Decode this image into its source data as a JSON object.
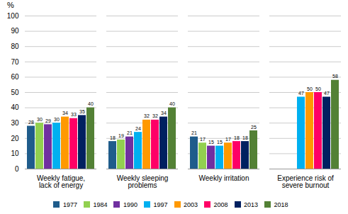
{
  "chart_data": {
    "type": "bar",
    "categories": [
      "Weekly fatigue,\nlack of energy",
      "Weekly sleeping\nproblems",
      "Weekly irritation",
      "Experience risk of\nsevere burnout"
    ],
    "series": [
      {
        "name": "1977",
        "color": "#1f5c8b",
        "values": [
          28,
          18,
          21,
          null
        ]
      },
      {
        "name": "1984",
        "color": "#92d050",
        "values": [
          30,
          19,
          17,
          null
        ]
      },
      {
        "name": "1990",
        "color": "#7030a0",
        "values": [
          29,
          21,
          15,
          null
        ]
      },
      {
        "name": "1997",
        "color": "#00b0f0",
        "values": [
          30,
          24,
          15,
          47
        ]
      },
      {
        "name": "2003",
        "color": "#ff9900",
        "values": [
          34,
          32,
          17,
          50
        ]
      },
      {
        "name": "2008",
        "color": "#ff0066",
        "values": [
          33,
          32,
          18,
          50
        ]
      },
      {
        "name": "2013",
        "color": "#002060",
        "values": [
          35,
          34,
          18,
          47
        ]
      },
      {
        "name": "2018",
        "color": "#538135",
        "values": [
          40,
          40,
          25,
          58
        ]
      }
    ],
    "ylabel": "%",
    "ylim": [
      0,
      100
    ],
    "yticks": [
      0,
      10,
      20,
      30,
      40,
      50,
      60,
      70,
      80,
      90,
      100
    ],
    "grid": true,
    "data_labels": true,
    "legend": "bottom"
  }
}
